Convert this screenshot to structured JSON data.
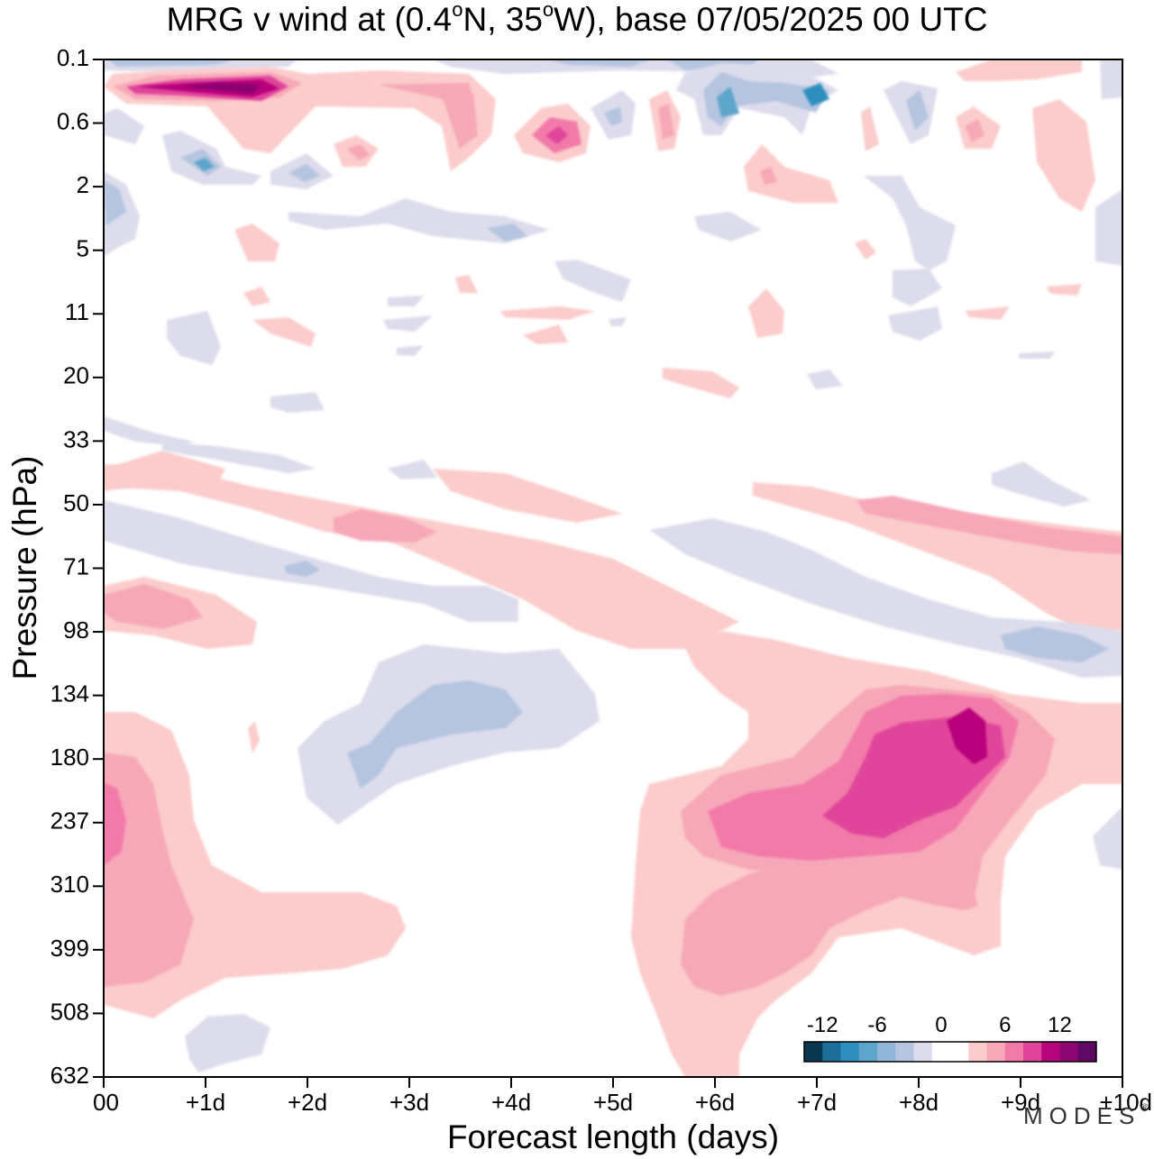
{
  "title": {
    "prefix": "MRG v wind at (0.4",
    "deg1": "o",
    "mid": "N, 35",
    "deg2": "o",
    "suffix": "W),  base 07/05/2025  00 UTC"
  },
  "brand": {
    "name": "MODES",
    "mark": "®"
  },
  "colors": {
    "negative": [
      "#08374f",
      "#1d6e98",
      "#2e8fbf",
      "#5da5cb",
      "#8fb5d8",
      "#b5c5df",
      "#dcdcec"
    ],
    "zero": "#ffffff",
    "positive": [
      "#fbcccb",
      "#f7a8b8",
      "#f27aa9",
      "#e0449b",
      "#b8047c",
      "#8b0671",
      "#5f0864"
    ]
  },
  "chart_data": {
    "type": "heatmap",
    "title": "MRG v wind at (0.4°N, 35°W),  base 07/05/2025  00 UTC",
    "xlabel": "Forecast length (days)",
    "ylabel": "Pressure (hPa)",
    "x_ticks": [
      "00",
      "+1d",
      "+2d",
      "+3d",
      "+4d",
      "+5d",
      "+6d",
      "+7d",
      "+8d",
      "+9d",
      "+10d"
    ],
    "y_ticks": [
      "0.1",
      "0.6",
      "2",
      "5",
      "11",
      "20",
      "33",
      "50",
      "71",
      "98",
      "134",
      "180",
      "237",
      "310",
      "399",
      "508",
      "632"
    ],
    "xlim": [
      0,
      10
    ],
    "colorbar": {
      "ticks": [
        "-12",
        "-6",
        "0",
        "6",
        "12"
      ],
      "levels": [
        -14,
        -12,
        -10,
        -8,
        -6,
        -4,
        -2,
        0,
        2,
        4,
        6,
        8,
        10,
        12,
        14
      ]
    },
    "features": [
      {
        "x": 1.5,
        "p": "0.25",
        "v": 13
      },
      {
        "x": 4.5,
        "p": "0.6",
        "v": 8
      },
      {
        "x": 7.0,
        "p": "0.3",
        "v": -8
      },
      {
        "x": 6.0,
        "p": "0.1",
        "v": -6
      },
      {
        "x": 1.0,
        "p": "1",
        "v": -6
      },
      {
        "x": 8.5,
        "p": "165",
        "v": 11
      },
      {
        "x": 8.0,
        "p": "230",
        "v": 8
      },
      {
        "x": 3.8,
        "p": "140",
        "v": -4
      },
      {
        "x": 0.1,
        "p": "240",
        "v": 6
      },
      {
        "x": 0.6,
        "p": "90",
        "v": 4
      },
      {
        "x": 9.5,
        "p": "118",
        "v": -4
      },
      {
        "x": 3.0,
        "p": "55",
        "v": 3
      }
    ]
  }
}
